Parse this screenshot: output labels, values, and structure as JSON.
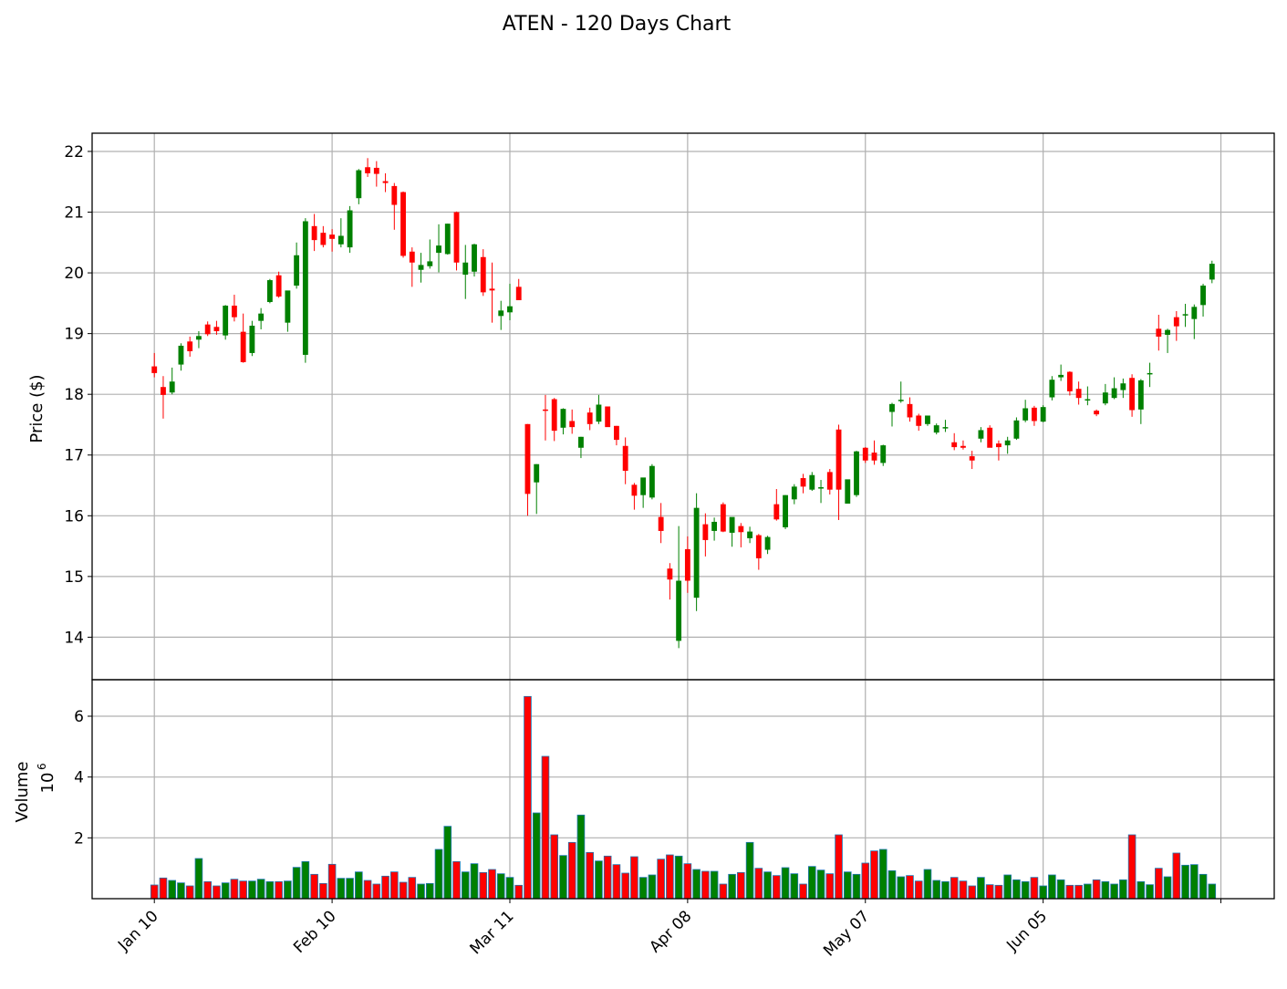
{
  "chart_data": {
    "type": "candlestick",
    "title": "ATEN - 120 Days Chart",
    "price_panel": {
      "ylabel": "Price ($)",
      "ylim": [
        13.3,
        22.3
      ],
      "yticks": [
        14,
        15,
        16,
        17,
        18,
        19,
        20,
        21,
        22
      ],
      "grid": true
    },
    "volume_panel": {
      "ylabel": "Volume",
      "ylabel_exponent": "10",
      "ylabel_exponent_power": "6",
      "ylim": [
        0,
        7.2
      ],
      "yticks": [
        2,
        4,
        6
      ],
      "grid": true
    },
    "x_axis": {
      "ticks": [
        {
          "index": 0,
          "label": "Jan 10"
        },
        {
          "index": 20,
          "label": "Feb 10"
        },
        {
          "index": 40,
          "label": "Mar 11"
        },
        {
          "index": 60,
          "label": "Apr 08"
        },
        {
          "index": 80,
          "label": "May 07"
        },
        {
          "index": 100,
          "label": "Jun 05"
        },
        {
          "index": 120,
          "label": ""
        }
      ],
      "xlim": [
        -7,
        126
      ]
    },
    "colors": {
      "up": "#008000",
      "down": "#ff0000",
      "volume_edge": "#1f77b4",
      "grid": "#b0b0b0"
    },
    "candles": [
      [
        18.46,
        18.68,
        18.28,
        18.35,
        0.45
      ],
      [
        18.12,
        18.3,
        17.6,
        17.99,
        0.68
      ],
      [
        18.03,
        18.44,
        18.0,
        18.21,
        0.6
      ],
      [
        18.49,
        18.84,
        18.39,
        18.8,
        0.52
      ],
      [
        18.87,
        18.95,
        18.62,
        18.71,
        0.42
      ],
      [
        18.9,
        19.04,
        18.76,
        18.96,
        1.32
      ],
      [
        19.15,
        19.2,
        18.96,
        18.99,
        0.56
      ],
      [
        19.11,
        19.21,
        18.98,
        19.04,
        0.42
      ],
      [
        18.97,
        19.47,
        18.9,
        19.46,
        0.52
      ],
      [
        19.46,
        19.64,
        19.2,
        19.27,
        0.64
      ],
      [
        19.03,
        19.33,
        18.52,
        18.53,
        0.58
      ],
      [
        18.68,
        19.21,
        18.63,
        19.13,
        0.58
      ],
      [
        19.21,
        19.42,
        19.07,
        19.33,
        0.64
      ],
      [
        19.52,
        19.9,
        19.5,
        19.88,
        0.56
      ],
      [
        19.96,
        20.02,
        19.59,
        19.61,
        0.56
      ],
      [
        19.18,
        19.7,
        19.03,
        19.71,
        0.58
      ],
      [
        19.79,
        20.5,
        19.74,
        20.29,
        1.03
      ],
      [
        18.65,
        20.9,
        18.52,
        20.85,
        1.22
      ],
      [
        20.77,
        20.97,
        20.36,
        20.54,
        0.8
      ],
      [
        20.66,
        20.77,
        20.42,
        20.46,
        0.5
      ],
      [
        20.63,
        20.72,
        20.35,
        20.56,
        1.13
      ],
      [
        20.47,
        20.9,
        20.42,
        20.61,
        0.67
      ],
      [
        20.42,
        21.1,
        20.33,
        21.03,
        0.67
      ],
      [
        21.23,
        21.71,
        21.13,
        21.69,
        0.88
      ],
      [
        21.74,
        21.89,
        21.58,
        21.64,
        0.6
      ],
      [
        21.73,
        21.84,
        21.42,
        21.63,
        0.48
      ],
      [
        21.51,
        21.64,
        21.33,
        21.48,
        0.74
      ],
      [
        21.43,
        21.48,
        20.71,
        21.12,
        0.88
      ],
      [
        21.33,
        21.34,
        20.25,
        20.28,
        0.54
      ],
      [
        20.35,
        20.42,
        19.77,
        20.17,
        0.7
      ],
      [
        20.05,
        20.33,
        19.84,
        20.13,
        0.48
      ],
      [
        20.11,
        20.55,
        20.07,
        20.19,
        0.5
      ],
      [
        20.33,
        20.8,
        20.01,
        20.45,
        1.62
      ],
      [
        20.31,
        20.81,
        20.3,
        20.81,
        2.38
      ],
      [
        21.0,
        21.01,
        20.04,
        20.17,
        1.22
      ],
      [
        19.97,
        20.46,
        19.57,
        20.17,
        0.88
      ],
      [
        20.02,
        20.48,
        19.94,
        20.47,
        1.15
      ],
      [
        20.26,
        20.39,
        19.62,
        19.68,
        0.86
      ],
      [
        19.74,
        20.17,
        19.18,
        19.71,
        0.96
      ],
      [
        19.29,
        19.54,
        19.06,
        19.38,
        0.82
      ],
      [
        19.35,
        19.82,
        19.22,
        19.45,
        0.7
      ],
      [
        19.77,
        19.9,
        19.58,
        19.55,
        0.44
      ],
      [
        17.51,
        17.51,
        16.0,
        16.36,
        6.65
      ],
      [
        16.55,
        16.85,
        16.03,
        16.85,
        2.82
      ],
      [
        17.75,
        17.99,
        17.24,
        17.74,
        4.68
      ],
      [
        17.92,
        17.94,
        17.23,
        17.4,
        2.1
      ],
      [
        17.45,
        17.77,
        17.34,
        17.76,
        1.42
      ],
      [
        17.56,
        17.75,
        17.35,
        17.46,
        1.85
      ],
      [
        17.12,
        17.3,
        16.95,
        17.3,
        2.75
      ],
      [
        17.7,
        17.78,
        17.41,
        17.51,
        1.52
      ],
      [
        17.55,
        17.99,
        17.51,
        17.83,
        1.24
      ],
      [
        17.8,
        17.8,
        17.47,
        17.46,
        1.4
      ],
      [
        17.48,
        17.48,
        17.16,
        17.25,
        1.12
      ],
      [
        17.15,
        17.29,
        16.52,
        16.74,
        0.84
      ],
      [
        16.51,
        16.54,
        16.1,
        16.33,
        1.38
      ],
      [
        16.34,
        16.62,
        16.13,
        16.63,
        0.7
      ],
      [
        16.3,
        16.85,
        16.27,
        16.82,
        0.78
      ],
      [
        15.98,
        16.21,
        15.55,
        15.75,
        1.3
      ],
      [
        15.13,
        15.22,
        14.62,
        14.95,
        1.44
      ],
      [
        13.94,
        15.83,
        13.82,
        14.93,
        1.4
      ],
      [
        15.45,
        15.66,
        14.73,
        14.93,
        1.15
      ],
      [
        14.65,
        16.37,
        14.43,
        16.13,
        0.96
      ],
      [
        15.86,
        16.04,
        15.33,
        15.6,
        0.9
      ],
      [
        15.75,
        15.97,
        15.59,
        15.9,
        0.9
      ],
      [
        16.19,
        16.22,
        15.73,
        15.74,
        0.48
      ],
      [
        15.72,
        15.97,
        15.49,
        15.98,
        0.8
      ],
      [
        15.83,
        15.88,
        15.48,
        15.73,
        0.86
      ],
      [
        15.63,
        15.82,
        15.55,
        15.74,
        1.85
      ],
      [
        15.68,
        15.7,
        15.11,
        15.3,
        1.0
      ],
      [
        15.44,
        15.67,
        15.37,
        15.65,
        0.88
      ],
      [
        16.19,
        16.44,
        15.92,
        15.94,
        0.76
      ],
      [
        15.81,
        16.34,
        15.78,
        16.34,
        1.02
      ],
      [
        16.27,
        16.52,
        16.19,
        16.48,
        0.82
      ],
      [
        16.62,
        16.69,
        16.37,
        16.48,
        0.48
      ],
      [
        16.43,
        16.72,
        16.41,
        16.67,
        1.06
      ],
      [
        16.47,
        16.59,
        16.21,
        16.47,
        0.94
      ],
      [
        16.72,
        16.77,
        16.35,
        16.43,
        0.82
      ],
      [
        17.42,
        17.5,
        15.93,
        16.43,
        2.1
      ],
      [
        16.2,
        16.58,
        16.2,
        16.6,
        0.88
      ],
      [
        16.34,
        17.07,
        16.31,
        17.06,
        0.8
      ],
      [
        17.12,
        17.13,
        16.87,
        16.91,
        1.17
      ],
      [
        17.04,
        17.24,
        16.84,
        16.91,
        1.57
      ],
      [
        16.87,
        17.17,
        16.82,
        17.16,
        1.62
      ],
      [
        17.71,
        17.86,
        17.47,
        17.84,
        0.92
      ],
      [
        17.91,
        18.21,
        17.86,
        17.91,
        0.72
      ],
      [
        17.84,
        17.95,
        17.55,
        17.62,
        0.76
      ],
      [
        17.65,
        17.68,
        17.4,
        17.48,
        0.58
      ],
      [
        17.51,
        17.65,
        17.48,
        17.65,
        0.96
      ],
      [
        17.37,
        17.52,
        17.34,
        17.49,
        0.6
      ],
      [
        17.46,
        17.58,
        17.38,
        17.46,
        0.56
      ],
      [
        17.21,
        17.36,
        17.08,
        17.13,
        0.7
      ],
      [
        17.15,
        17.24,
        17.09,
        17.12,
        0.58
      ],
      [
        16.98,
        17.07,
        16.77,
        16.91,
        0.42
      ],
      [
        17.27,
        17.46,
        17.21,
        17.41,
        0.7
      ],
      [
        17.45,
        17.49,
        17.15,
        17.12,
        0.46
      ],
      [
        17.19,
        17.24,
        16.91,
        17.13,
        0.44
      ],
      [
        17.16,
        17.3,
        17.02,
        17.24,
        0.78
      ],
      [
        17.27,
        17.62,
        17.25,
        17.57,
        0.62
      ],
      [
        17.57,
        17.91,
        17.54,
        17.77,
        0.56
      ],
      [
        17.78,
        17.81,
        17.48,
        17.56,
        0.7
      ],
      [
        17.55,
        17.82,
        17.54,
        17.79,
        0.42
      ],
      [
        17.95,
        18.3,
        17.9,
        18.24,
        0.78
      ],
      [
        18.28,
        18.49,
        18.22,
        18.32,
        0.62
      ],
      [
        18.37,
        18.38,
        17.98,
        18.05,
        0.44
      ],
      [
        18.09,
        18.21,
        17.83,
        17.94,
        0.44
      ],
      [
        17.9,
        18.13,
        17.82,
        17.92,
        0.48
      ],
      [
        17.73,
        17.75,
        17.64,
        17.67,
        0.62
      ],
      [
        17.85,
        18.17,
        17.82,
        18.03,
        0.56
      ],
      [
        17.94,
        18.28,
        17.92,
        18.1,
        0.48
      ],
      [
        18.07,
        18.26,
        17.94,
        18.18,
        0.62
      ],
      [
        18.27,
        18.33,
        17.63,
        17.74,
        2.1
      ],
      [
        17.75,
        18.25,
        17.51,
        18.23,
        0.56
      ],
      [
        18.34,
        18.52,
        18.12,
        18.35,
        0.46
      ],
      [
        19.08,
        19.31,
        18.72,
        18.95,
        1.0
      ],
      [
        18.98,
        19.08,
        18.68,
        19.06,
        0.72
      ],
      [
        19.27,
        19.37,
        18.88,
        19.12,
        1.5
      ],
      [
        19.3,
        19.49,
        19.11,
        19.32,
        1.1
      ],
      [
        19.24,
        19.48,
        18.91,
        19.44,
        1.12
      ],
      [
        19.47,
        19.82,
        19.28,
        19.79,
        0.8
      ],
      [
        19.89,
        20.2,
        19.83,
        20.15,
        0.48
      ]
    ]
  }
}
